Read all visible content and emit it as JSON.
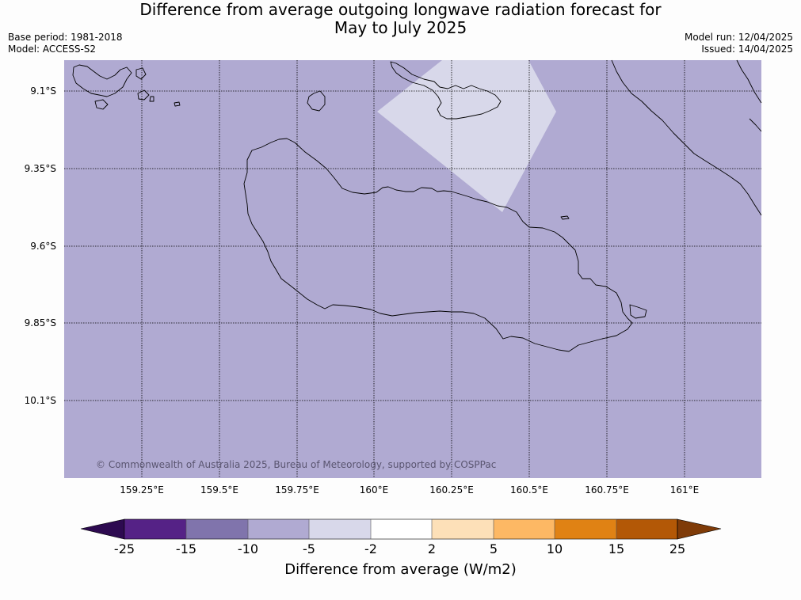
{
  "title": {
    "line1": "Difference from average outgoing longwave radiation forecast for",
    "line2": "May to July 2025"
  },
  "meta": {
    "base_period": "Base period: 1981-2018",
    "model": "Model: ACCESS-S2",
    "model_run": "Model run: 12/04/2025",
    "issued": "Issued: 14/04/2025"
  },
  "map": {
    "background_category": "-10 to -5",
    "highlight_category": "-5 to -2",
    "copyright": "© Commonwealth of Australia 2025, Bureau of Meteorology, supported by COSPPac",
    "lon_ticks": [
      "159.25°E",
      "159.5°E",
      "159.75°E",
      "160°E",
      "160.25°E",
      "160.5°E",
      "160.75°E",
      "161°E"
    ],
    "lat_ticks": [
      "9.1°S",
      "9.35°S",
      "9.6°S",
      "9.85°S",
      "10.1°S"
    ]
  },
  "colorbar": {
    "label": "Difference from average (W/m2)",
    "ticks": [
      "-25",
      "-15",
      "-10",
      "-5",
      "-2",
      "2",
      "5",
      "10",
      "15",
      "25"
    ],
    "colors": {
      "below_min": "#2d0a50",
      "c1": "#552286",
      "c2": "#8074ac",
      "c3": "#b0aad2",
      "c4": "#d8d8ea",
      "c5": "#ffffff",
      "c6": "#fde0b8",
      "c7": "#fdb864",
      "c8": "#e08214",
      "c9": "#b35806",
      "above_max": "#7f3b08"
    }
  }
}
